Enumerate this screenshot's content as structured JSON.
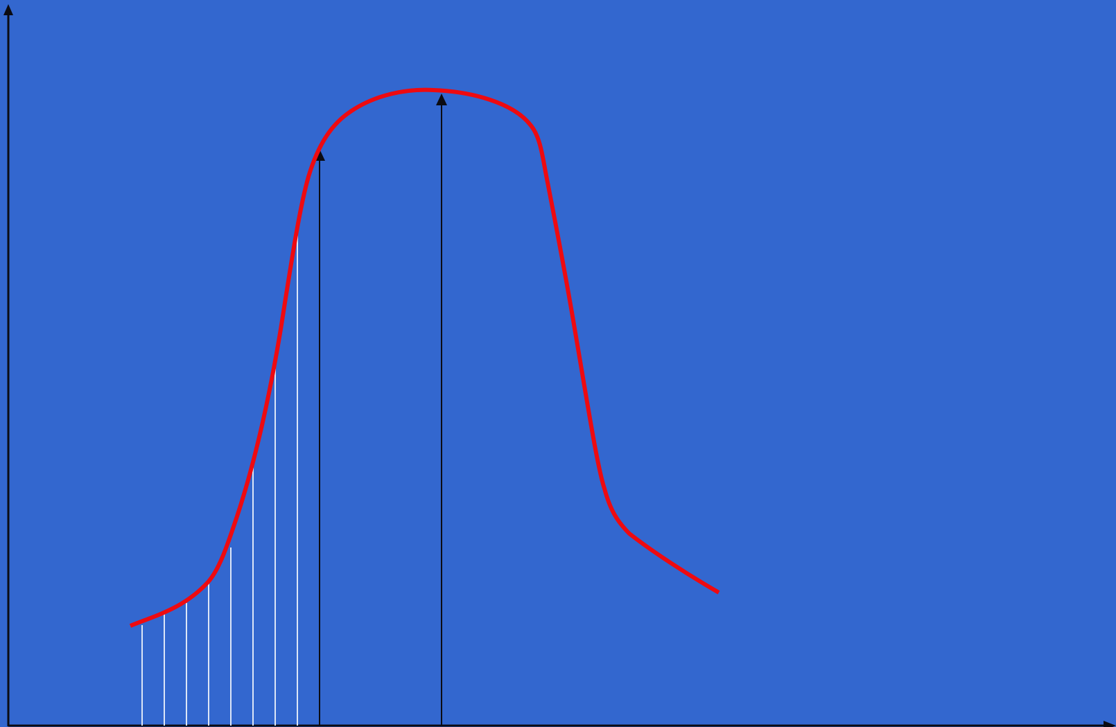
{
  "colors": {
    "background": "#3367CF",
    "axis": "#0B0B12",
    "curve": "#EE0A10",
    "ordinate_light": "#DDE6F7",
    "arrow_ordinate": "#0B0B12"
  },
  "diagram": {
    "chart_type": "curve-with-ordinates",
    "axes": [
      "x-axis",
      "y-axis"
    ],
    "light_ordinate_count": 8,
    "arrow_ordinate_count": 2
  }
}
